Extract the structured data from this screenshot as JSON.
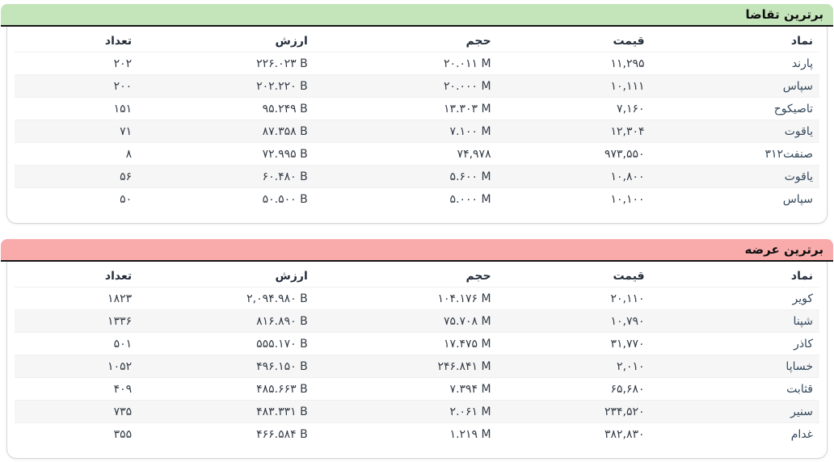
{
  "colors": {
    "demand_header_bg": "#c4e4ba",
    "supply_header_bg": "#f9abab",
    "header_underline": "#141414",
    "stripe_row_bg": "#f6f6f6",
    "card_border": "#d7d7d7"
  },
  "tables": [
    {
      "title": "برترین تقاضا",
      "columns": [
        "نماد",
        "قیمت",
        "حجم",
        "ارزش",
        "تعداد"
      ],
      "rows": [
        {
          "symbol": "پارند",
          "price": "۱۱,۲۹۵",
          "volume": "۲۰.۰۱۱ M",
          "value": "۲۲۶.۰۲۳ B",
          "count": "۲۰۲"
        },
        {
          "symbol": "سپاس",
          "price": "۱۰,۱۱۱",
          "volume": "۲۰.۰۰۰ M",
          "value": "۲۰۲.۲۲۰ B",
          "count": "۲۰۰"
        },
        {
          "symbol": "تاصیکوح",
          "price": "۷,۱۶۰",
          "volume": "۱۳.۳۰۳ M",
          "value": "۹۵.۲۴۹ B",
          "count": "۱۵۱"
        },
        {
          "symbol": "یاقوت",
          "price": "۱۲,۳۰۴",
          "volume": "۷.۱۰۰ M",
          "value": "۸۷.۳۵۸ B",
          "count": "۷۱"
        },
        {
          "symbol": "صنفت۳۱۲",
          "price": "۹۷۳,۵۵۰",
          "volume": "۷۴,۹۷۸",
          "value": "۷۲.۹۹۵ B",
          "count": "۸"
        },
        {
          "symbol": "یاقوت",
          "price": "۱۰,۸۰۰",
          "volume": "۵.۶۰۰ M",
          "value": "۶۰.۴۸۰ B",
          "count": "۵۶"
        },
        {
          "symbol": "سپاس",
          "price": "۱۰,۱۰۰",
          "volume": "۵.۰۰۰ M",
          "value": "۵۰.۵۰۰ B",
          "count": "۵۰"
        }
      ]
    },
    {
      "title": "برترین عرضه",
      "columns": [
        "نماد",
        "قیمت",
        "حجم",
        "ارزش",
        "تعداد"
      ],
      "rows": [
        {
          "symbol": "کویر",
          "price": "۲۰,۱۱۰",
          "volume": "۱۰۴.۱۷۶ M",
          "value": "۲,۰۹۴.۹۸۰ B",
          "count": "۱۸۲۳"
        },
        {
          "symbol": "شپنا",
          "price": "۱۰,۷۹۰",
          "volume": "۷۵.۷۰۸ M",
          "value": "۸۱۶.۸۹۰ B",
          "count": "۱۳۳۶"
        },
        {
          "symbol": "کاذر",
          "price": "۳۱,۷۷۰",
          "volume": "۱۷.۴۷۵ M",
          "value": "۵۵۵.۱۷۰ B",
          "count": "۵۰۱"
        },
        {
          "symbol": "خساپا",
          "price": "۲,۰۱۰",
          "volume": "۲۴۶.۸۴۱ M",
          "value": "۴۹۶.۱۵۰ B",
          "count": "۱۰۵۲"
        },
        {
          "symbol": "قثابت",
          "price": "۶۵,۶۸۰",
          "volume": "۷.۳۹۴ M",
          "value": "۴۸۵.۶۶۳ B",
          "count": "۴۰۹"
        },
        {
          "symbol": "سنیر",
          "price": "۲۳۴,۵۲۰",
          "volume": "۲.۰۶۱ M",
          "value": "۴۸۳.۳۳۱ B",
          "count": "۷۳۵"
        },
        {
          "symbol": "غدام",
          "price": "۳۸۲,۸۳۰",
          "volume": "۱.۲۱۹ M",
          "value": "۴۶۶.۵۸۴ B",
          "count": "۳۵۵"
        }
      ]
    }
  ]
}
